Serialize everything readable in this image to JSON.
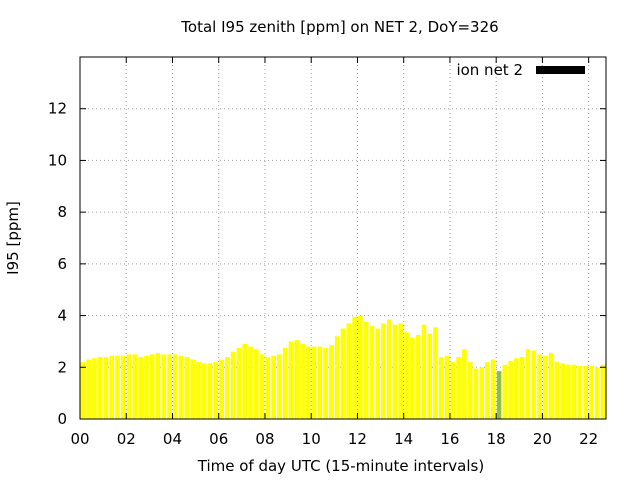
{
  "chart_data": {
    "type": "bar",
    "title": "Total I95 zenith [ppm] on NET 2, DoY=326",
    "xlabel": "Time of day UTC (15-minute intervals)",
    "ylabel": "I95 [ppm]",
    "xlim": [
      0,
      22.75
    ],
    "ylim": [
      0,
      14
    ],
    "x_tick_labels": [
      "00",
      "02",
      "04",
      "06",
      "08",
      "10",
      "12",
      "14",
      "16",
      "18",
      "20",
      "22"
    ],
    "x_tick_values": [
      0,
      2,
      4,
      6,
      8,
      10,
      12,
      14,
      16,
      18,
      20,
      22
    ],
    "y_tick_labels": [
      "0",
      "2",
      "4",
      "6",
      "8",
      "10",
      "12"
    ],
    "y_tick_values": [
      0,
      2,
      4,
      6,
      8,
      10,
      12
    ],
    "grid": true,
    "legend": {
      "position": "top-right",
      "label": "ion net 2",
      "color": "#000000"
    },
    "bar_color": "#ffff00",
    "highlight_color": "#8fbf3f",
    "highlight_index": 72,
    "interval_hours": 0.25,
    "values": [
      2.2,
      2.3,
      2.35,
      2.4,
      2.4,
      2.45,
      2.45,
      2.45,
      2.5,
      2.5,
      2.4,
      2.45,
      2.5,
      2.55,
      2.5,
      2.5,
      2.5,
      2.45,
      2.4,
      2.3,
      2.2,
      2.15,
      2.15,
      2.2,
      2.3,
      2.4,
      2.6,
      2.75,
      2.9,
      2.8,
      2.7,
      2.5,
      2.4,
      2.45,
      2.5,
      2.75,
      3.0,
      3.05,
      2.9,
      2.8,
      2.8,
      2.8,
      2.75,
      2.85,
      3.2,
      3.5,
      3.7,
      3.95,
      4.0,
      3.75,
      3.6,
      3.5,
      3.7,
      3.85,
      3.65,
      3.7,
      3.35,
      3.15,
      3.25,
      3.65,
      3.3,
      3.55,
      2.4,
      2.45,
      2.2,
      2.4,
      2.7,
      2.2,
      1.95,
      2.0,
      2.2,
      2.3,
      1.85,
      2.1,
      2.25,
      2.35,
      2.4,
      2.7,
      2.65,
      2.5,
      2.45,
      2.55,
      2.2,
      2.15,
      2.1,
      2.1,
      2.05,
      2.05,
      2.05,
      2.0,
      2.1
    ]
  }
}
